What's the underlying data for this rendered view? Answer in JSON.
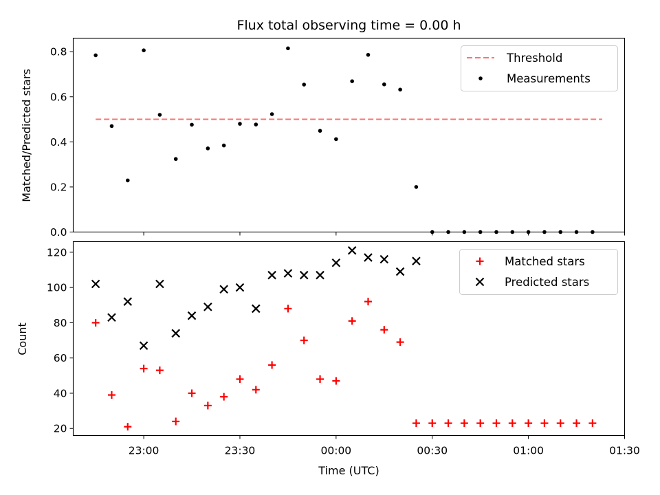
{
  "chart_data": [
    {
      "type": "scatter",
      "title": "Flux total observing time = 0.00 h",
      "xlabel": "",
      "ylabel": "Matched/Predicted stars",
      "ylim": [
        0,
        0.86
      ],
      "yticks": [
        "0.0",
        "0.2",
        "0.4",
        "0.6",
        "0.8"
      ],
      "legend_position": "top-right",
      "threshold": {
        "name": "Threshold",
        "color": "#ff7070",
        "style": "dashed",
        "value": 0.5,
        "x_range": [
          "22:45",
          "01:23"
        ]
      },
      "series": [
        {
          "name": "Measurements",
          "color": "#000000",
          "marker": "dot",
          "x": [
            "22:45",
            "22:50",
            "22:55",
            "23:00",
            "23:05",
            "23:10",
            "23:15",
            "23:20",
            "23:25",
            "23:30",
            "23:35",
            "23:40",
            "23:45",
            "23:50",
            "23:55",
            "00:00",
            "00:05",
            "00:10",
            "00:15",
            "00:20",
            "00:25",
            "00:30",
            "00:35",
            "00:40",
            "00:45",
            "00:50",
            "00:55",
            "01:00",
            "01:05",
            "01:10",
            "01:15",
            "01:20"
          ],
          "y": [
            0.784,
            0.47,
            0.229,
            0.806,
            0.52,
            0.324,
            0.476,
            0.371,
            0.384,
            0.48,
            0.477,
            0.523,
            0.815,
            0.654,
            0.449,
            0.412,
            0.669,
            0.786,
            0.655,
            0.632,
            0.2,
            0.0,
            0.0,
            0.0,
            0.0,
            0.0,
            0.0,
            0.0,
            0.0,
            0.0,
            0.0,
            0.0
          ]
        }
      ]
    },
    {
      "type": "scatter",
      "title": "",
      "xlabel": "Time (UTC)",
      "ylabel": "Count",
      "xlim": [
        "22:38",
        "01:30"
      ],
      "ylim": [
        16,
        126
      ],
      "xticks": [
        "23:00",
        "23:30",
        "00:00",
        "00:30",
        "01:00",
        "01:30"
      ],
      "yticks": [
        "20",
        "40",
        "60",
        "80",
        "100",
        "120"
      ],
      "legend_position": "top-right",
      "series": [
        {
          "name": "Matched stars",
          "color": "#ff0000",
          "marker": "plus",
          "x": [
            "22:45",
            "22:50",
            "22:55",
            "23:00",
            "23:05",
            "23:10",
            "23:15",
            "23:20",
            "23:25",
            "23:30",
            "23:35",
            "23:40",
            "23:45",
            "23:50",
            "23:55",
            "00:00",
            "00:05",
            "00:10",
            "00:15",
            "00:20",
            "00:25",
            "00:30",
            "00:35",
            "00:40",
            "00:45",
            "00:50",
            "00:55",
            "01:00",
            "01:05",
            "01:10",
            "01:15",
            "01:20"
          ],
          "y": [
            80,
            39,
            21,
            54,
            53,
            24,
            40,
            33,
            38,
            48,
            42,
            56,
            88,
            70,
            48,
            47,
            81,
            92,
            76,
            69,
            23,
            23,
            23,
            23,
            23,
            23,
            23,
            23,
            23,
            23,
            23,
            23
          ]
        },
        {
          "name": "Predicted stars",
          "color": "#000000",
          "marker": "x",
          "x": [
            "22:45",
            "22:50",
            "22:55",
            "23:00",
            "23:05",
            "23:10",
            "23:15",
            "23:20",
            "23:25",
            "23:30",
            "23:35",
            "23:40",
            "23:45",
            "23:50",
            "23:55",
            "00:00",
            "00:05",
            "00:10",
            "00:15",
            "00:20",
            "00:25"
          ],
          "y": [
            102,
            83,
            92,
            67,
            102,
            74,
            84,
            89,
            99,
            100,
            88,
            107,
            108,
            107,
            107,
            114,
            121,
            117,
            116,
            109,
            115
          ]
        }
      ]
    }
  ]
}
